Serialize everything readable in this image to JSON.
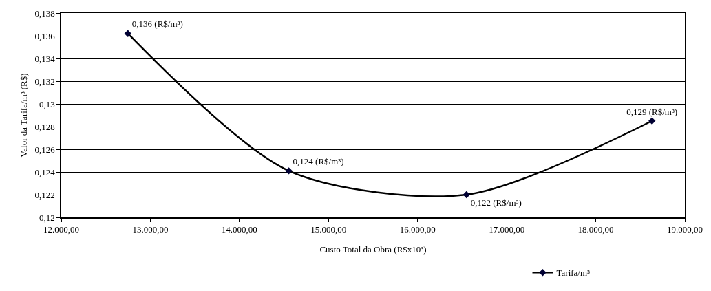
{
  "chart_data": {
    "type": "line",
    "xlabel": "Custo Total da Obra (R$x10³)",
    "ylabel": "Valor da Tarifa/m³ (R$)",
    "x": [
      12748,
      14554,
      16549,
      18631
    ],
    "series": [
      {
        "name": "Tarifa/m³",
        "color": "#000000",
        "values": [
          0.1362,
          0.1241,
          0.122,
          0.1285
        ],
        "value_labels": [
          "0,136 (R$/m³)",
          "0,124 (R$/m³)",
          "0,122 (R$/m³)",
          "0,129 (R$/m³)"
        ]
      }
    ],
    "xlim": [
      12000,
      19000
    ],
    "xticks": [
      {
        "value": 12000,
        "label": "12.000,00"
      },
      {
        "value": 13000,
        "label": "13.000,00"
      },
      {
        "value": 14000,
        "label": "14.000,00"
      },
      {
        "value": 15000,
        "label": "15.000,00"
      },
      {
        "value": 16000,
        "label": "16.000,00"
      },
      {
        "value": 17000,
        "label": "17.000,00"
      },
      {
        "value": 18000,
        "label": "18.000,00"
      },
      {
        "value": 19000,
        "label": "19.000,00"
      }
    ],
    "ylim": [
      0.12,
      0.138
    ],
    "yticks": [
      {
        "value": 0.12,
        "label": "0,12"
      },
      {
        "value": 0.122,
        "label": "0,122"
      },
      {
        "value": 0.124,
        "label": "0,124"
      },
      {
        "value": 0.126,
        "label": "0,126"
      },
      {
        "value": 0.128,
        "label": "0,128"
      },
      {
        "value": 0.13,
        "label": "0,13"
      },
      {
        "value": 0.132,
        "label": "0,132"
      },
      {
        "value": 0.134,
        "label": "0,134"
      },
      {
        "value": 0.136,
        "label": "0,136"
      },
      {
        "value": 0.138,
        "label": "0,138"
      }
    ],
    "grid": "y",
    "legend": "bottom right",
    "marker": "diamond",
    "line_style": "solid"
  }
}
